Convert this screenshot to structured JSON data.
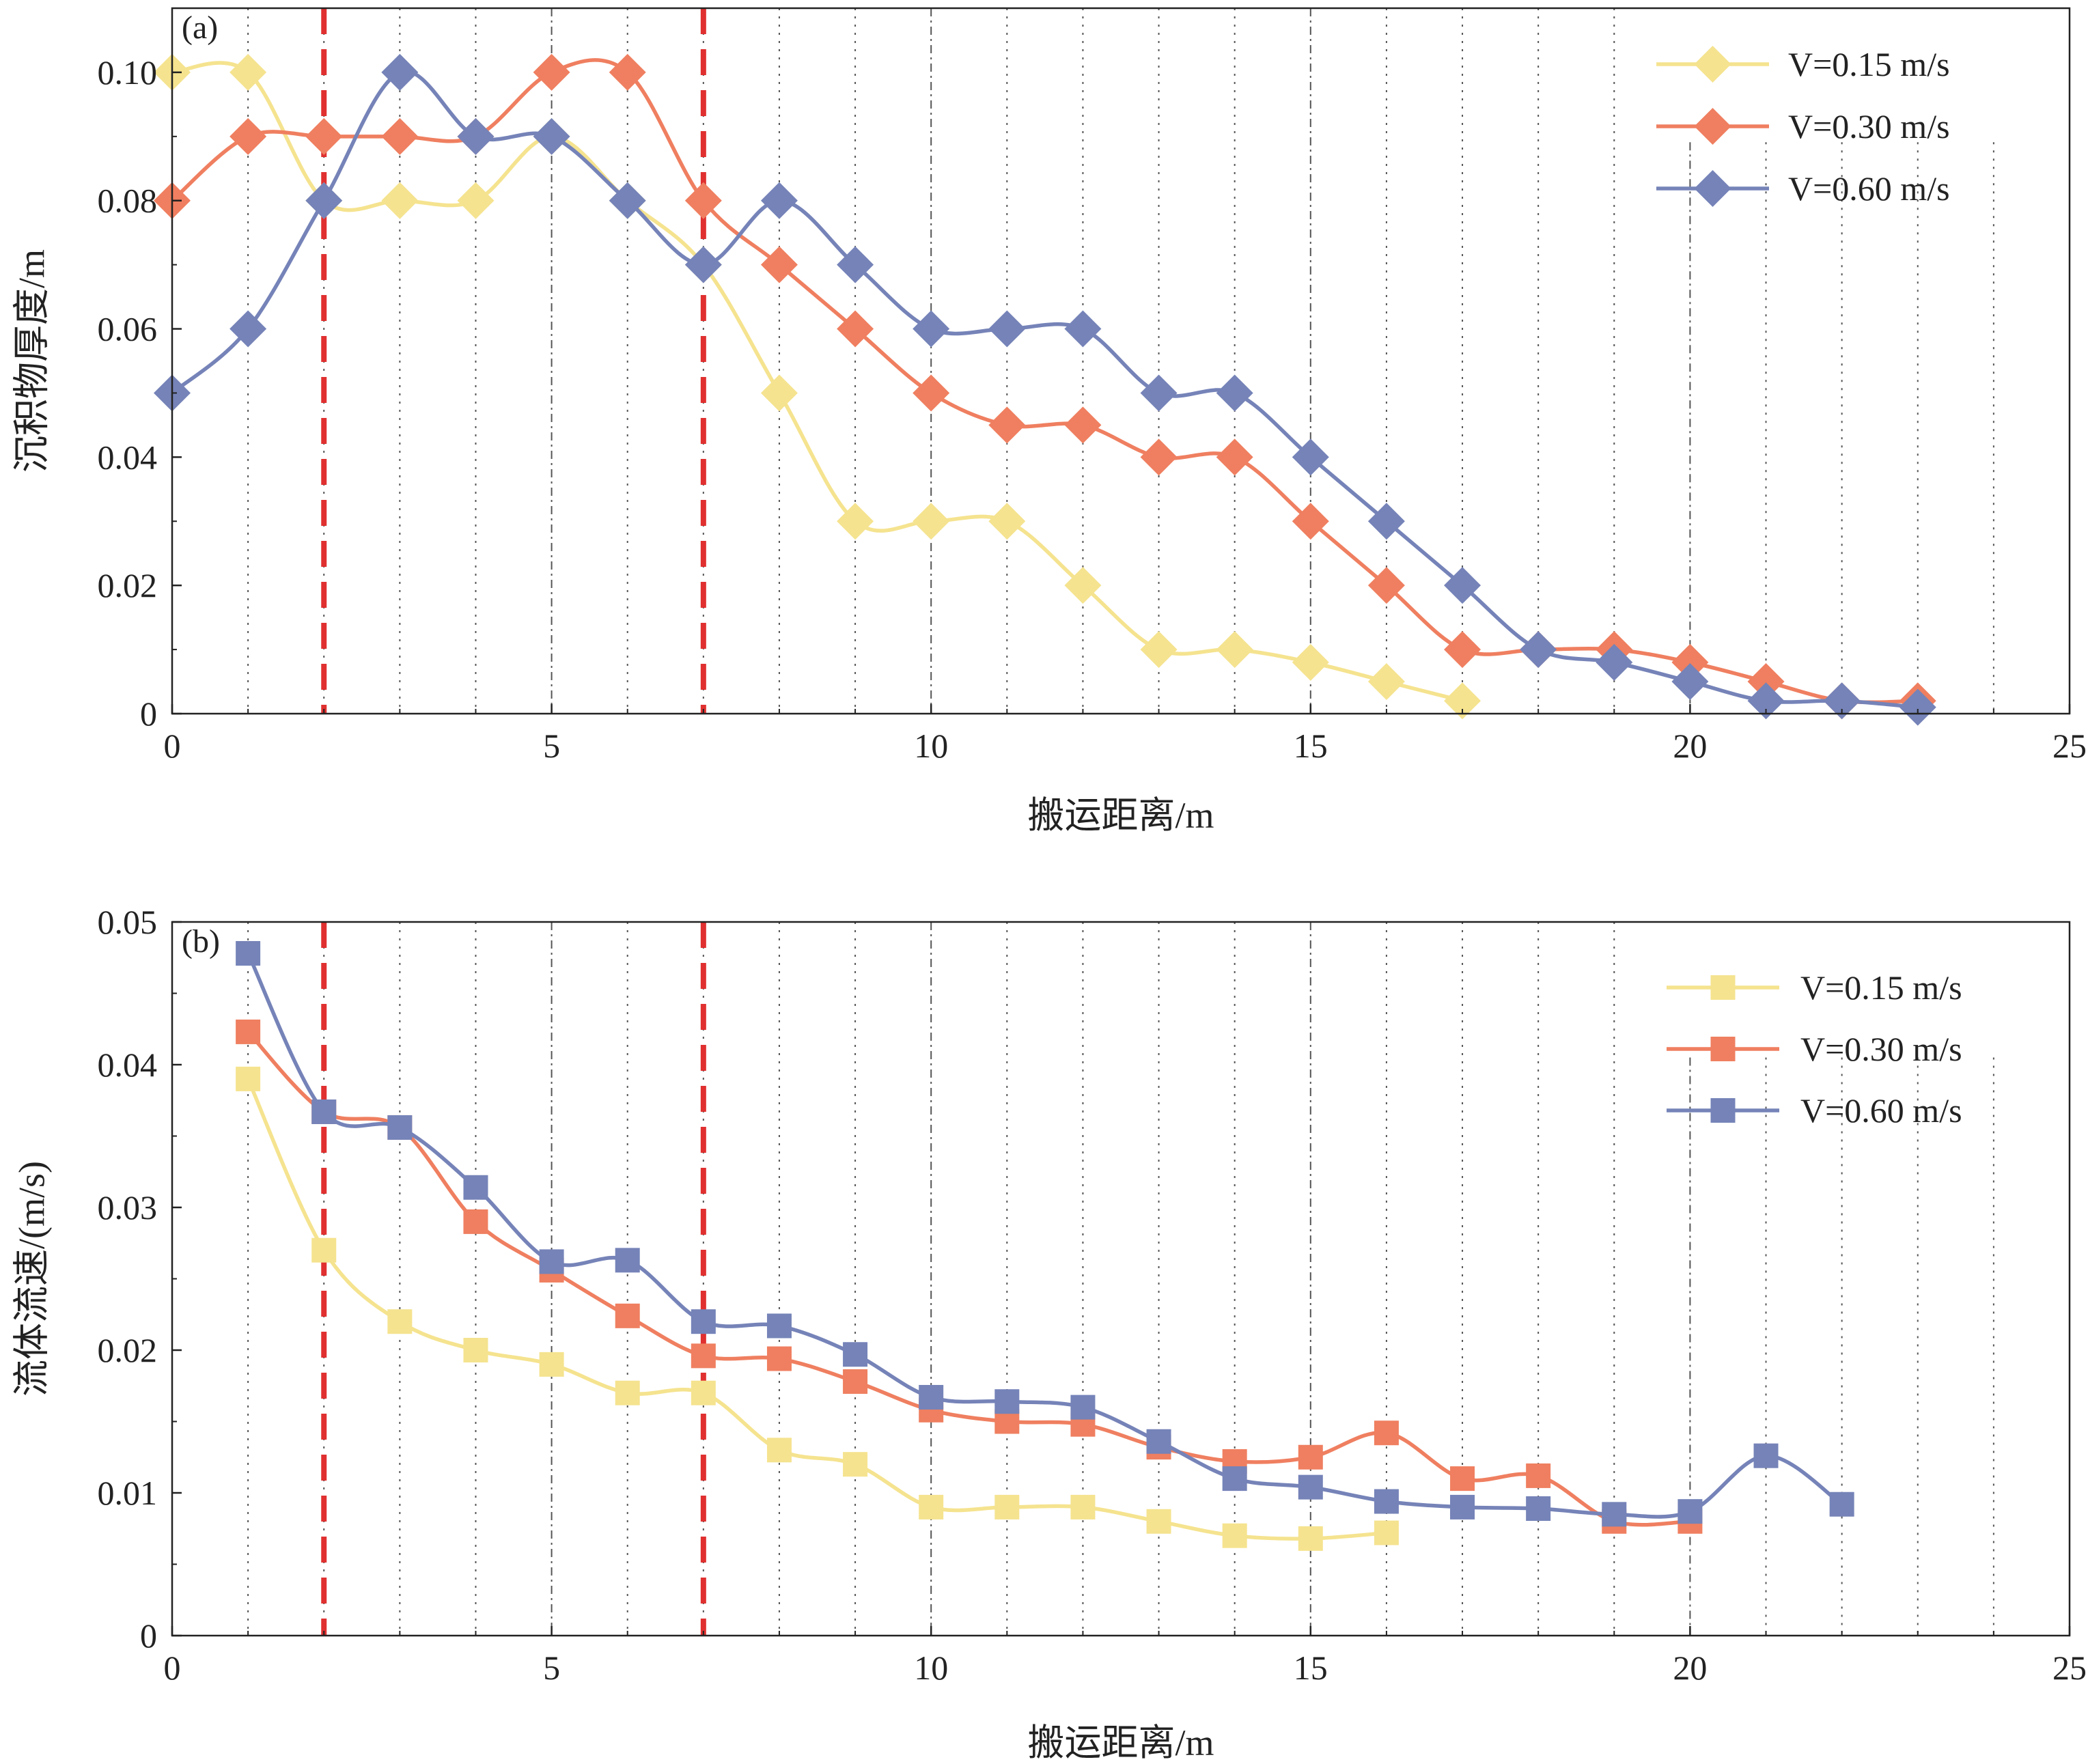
{
  "chart_data": [
    {
      "type": "line",
      "panel_label": "(a)",
      "xlabel": "搬运距离/m",
      "ylabel": "沉积物厚度/m",
      "xlim": [
        0,
        25
      ],
      "ylim": [
        0,
        0.11
      ],
      "xticks": [
        0,
        5,
        10,
        15,
        20,
        25
      ],
      "yticks": [
        0,
        0.02,
        0.04,
        0.06,
        0.08,
        0.1
      ],
      "ytick_labels": [
        "0",
        "0.02",
        "0.04",
        "0.06",
        "0.08",
        "0.10"
      ],
      "marker": "diamond",
      "smooth": true,
      "grid": "vertical dotted lines at each integer x; dash-dot at multiples of 5",
      "reference_lines": [
        2,
        7
      ],
      "legend_position": "top-right",
      "series": [
        {
          "name": "V=0.15 m/s",
          "color": "#F5E38F",
          "x": [
            0,
            1,
            2,
            3,
            4,
            5,
            6,
            7,
            8,
            9,
            10,
            11,
            12,
            13,
            14,
            15,
            16,
            17
          ],
          "values": [
            0.1,
            0.1,
            0.08,
            0.08,
            0.08,
            0.09,
            0.08,
            0.07,
            0.05,
            0.03,
            0.03,
            0.03,
            0.02,
            0.01,
            0.01,
            0.008,
            0.005,
            0.002
          ]
        },
        {
          "name": "V=0.30 m/s",
          "color": "#EF7F60",
          "x": [
            0,
            1,
            2,
            3,
            4,
            5,
            6,
            7,
            8,
            9,
            10,
            11,
            12,
            13,
            14,
            15,
            16,
            17,
            18,
            19,
            20,
            21,
            22,
            23
          ],
          "values": [
            0.08,
            0.09,
            0.09,
            0.09,
            0.09,
            0.1,
            0.1,
            0.08,
            0.07,
            0.06,
            0.05,
            0.045,
            0.045,
            0.04,
            0.04,
            0.03,
            0.02,
            0.01,
            0.01,
            0.01,
            0.008,
            0.005,
            0.002,
            0.002
          ]
        },
        {
          "name": "V=0.60 m/s",
          "color": "#7583B8",
          "x": [
            0,
            1,
            2,
            3,
            4,
            5,
            6,
            7,
            8,
            9,
            10,
            11,
            12,
            13,
            14,
            15,
            16,
            17,
            18,
            19,
            20,
            21,
            22,
            23
          ],
          "values": [
            0.05,
            0.06,
            0.08,
            0.1,
            0.09,
            0.09,
            0.08,
            0.07,
            0.08,
            0.07,
            0.06,
            0.06,
            0.06,
            0.05,
            0.05,
            0.04,
            0.03,
            0.02,
            0.01,
            0.008,
            0.005,
            0.002,
            0.002,
            0.001
          ]
        }
      ]
    },
    {
      "type": "line",
      "panel_label": "(b)",
      "xlabel": "搬运距离/m",
      "ylabel": "流体流速/(m/s)",
      "xlim": [
        0,
        25
      ],
      "ylim": [
        0,
        0.05
      ],
      "xticks": [
        0,
        5,
        10,
        15,
        20,
        25
      ],
      "yticks": [
        0,
        0.01,
        0.02,
        0.03,
        0.04,
        0.05
      ],
      "ytick_labels": [
        "0",
        "0.01",
        "0.02",
        "0.03",
        "0.04",
        "0.05"
      ],
      "marker": "square",
      "smooth": true,
      "grid": "vertical dotted lines at each integer x; dash-dot at multiples of 5",
      "reference_lines": [
        2,
        7
      ],
      "legend_position": "top-right",
      "series": [
        {
          "name": "V=0.15 m/s",
          "color": "#F5E38F",
          "x": [
            1,
            2,
            3,
            4,
            5,
            6,
            7,
            8,
            9,
            10,
            11,
            12,
            13,
            14,
            15,
            16
          ],
          "values": [
            0.039,
            0.027,
            0.022,
            0.02,
            0.019,
            0.017,
            0.017,
            0.013,
            0.012,
            0.009,
            0.009,
            0.009,
            0.008,
            0.007,
            0.0068,
            0.0072
          ]
        },
        {
          "name": "V=0.30 m/s",
          "color": "#EF7F60",
          "x": [
            1,
            2,
            3,
            4,
            5,
            6,
            7,
            8,
            9,
            10,
            11,
            12,
            13,
            14,
            15,
            16,
            17,
            18,
            19,
            20
          ],
          "values": [
            0.0423,
            0.0367,
            0.0356,
            0.029,
            0.0256,
            0.0224,
            0.0196,
            0.0194,
            0.0178,
            0.0158,
            0.015,
            0.0148,
            0.0132,
            0.0122,
            0.0125,
            0.0142,
            0.011,
            0.0112,
            0.008,
            0.008
          ]
        },
        {
          "name": "V=0.60 m/s",
          "color": "#7583B8",
          "x": [
            1,
            2,
            3,
            4,
            5,
            6,
            7,
            8,
            9,
            10,
            11,
            12,
            13,
            14,
            15,
            16,
            17,
            18,
            19,
            20,
            21,
            22
          ],
          "values": [
            0.0478,
            0.0367,
            0.0356,
            0.0314,
            0.0262,
            0.0263,
            0.022,
            0.0217,
            0.0197,
            0.0167,
            0.0164,
            0.016,
            0.0136,
            0.011,
            0.0104,
            0.0094,
            0.009,
            0.0089,
            0.0085,
            0.0087,
            0.0126,
            0.0092
          ]
        }
      ]
    }
  ]
}
